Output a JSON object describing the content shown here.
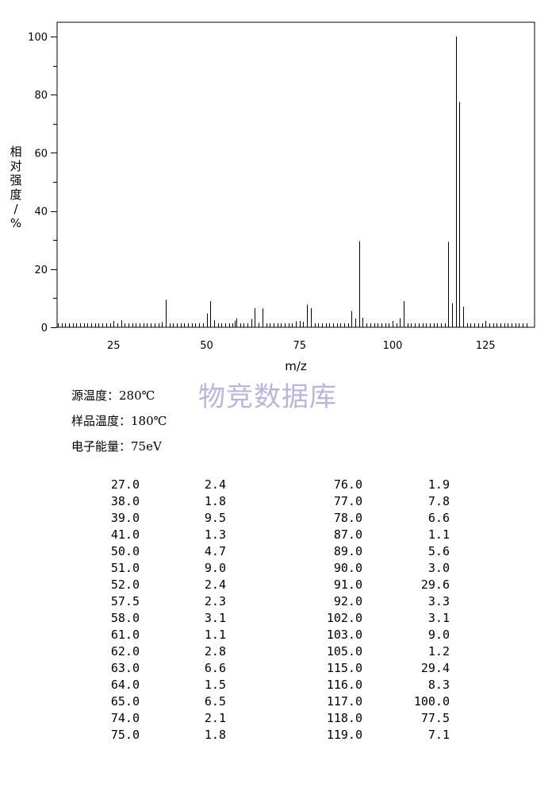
{
  "chart_data": {
    "type": "bar",
    "xlabel": "m/z",
    "ylabel": "相对强度/%",
    "xlim": [
      10,
      136
    ],
    "ylim": [
      0,
      100
    ],
    "x_ticks": [
      25,
      50,
      75,
      100,
      125
    ],
    "y_ticks": [
      0,
      20,
      40,
      60,
      80,
      100
    ],
    "grid": false,
    "peaks": [
      [
        27.0,
        2.4
      ],
      [
        38.0,
        1.8
      ],
      [
        39.0,
        9.5
      ],
      [
        41.0,
        1.3
      ],
      [
        50.0,
        4.7
      ],
      [
        51.0,
        9.0
      ],
      [
        52.0,
        2.4
      ],
      [
        57.5,
        2.3
      ],
      [
        58.0,
        3.1
      ],
      [
        61.0,
        1.1
      ],
      [
        62.0,
        2.8
      ],
      [
        63.0,
        6.6
      ],
      [
        64.0,
        1.5
      ],
      [
        65.0,
        6.5
      ],
      [
        74.0,
        2.1
      ],
      [
        75.0,
        1.8
      ],
      [
        76.0,
        1.9
      ],
      [
        77.0,
        7.8
      ],
      [
        78.0,
        6.6
      ],
      [
        87.0,
        1.1
      ],
      [
        89.0,
        5.6
      ],
      [
        90.0,
        3.0
      ],
      [
        91.0,
        29.6
      ],
      [
        92.0,
        3.3
      ],
      [
        102.0,
        3.1
      ],
      [
        103.0,
        9.0
      ],
      [
        105.0,
        1.2
      ],
      [
        115.0,
        29.4
      ],
      [
        116.0,
        8.3
      ],
      [
        117.0,
        100.0
      ],
      [
        118.0,
        77.5
      ],
      [
        119.0,
        7.1
      ]
    ]
  },
  "conditions": {
    "source_temp": "源温度：280℃",
    "sample_temp": "样品温度：180℃",
    "electron_energy": "电子能量：75eV"
  },
  "watermark": "物竞数据库",
  "table": {
    "left": [
      [
        "27.0",
        "2.4"
      ],
      [
        "38.0",
        "1.8"
      ],
      [
        "39.0",
        "9.5"
      ],
      [
        "41.0",
        "1.3"
      ],
      [
        "50.0",
        "4.7"
      ],
      [
        "51.0",
        "9.0"
      ],
      [
        "52.0",
        "2.4"
      ],
      [
        "57.5",
        "2.3"
      ],
      [
        "58.0",
        "3.1"
      ],
      [
        "61.0",
        "1.1"
      ],
      [
        "62.0",
        "2.8"
      ],
      [
        "63.0",
        "6.6"
      ],
      [
        "64.0",
        "1.5"
      ],
      [
        "65.0",
        "6.5"
      ],
      [
        "74.0",
        "2.1"
      ],
      [
        "75.0",
        "1.8"
      ]
    ],
    "right": [
      [
        "76.0",
        "1.9"
      ],
      [
        "77.0",
        "7.8"
      ],
      [
        "78.0",
        "6.6"
      ],
      [
        "87.0",
        "1.1"
      ],
      [
        "89.0",
        "5.6"
      ],
      [
        "90.0",
        "3.0"
      ],
      [
        "91.0",
        "29.6"
      ],
      [
        "92.0",
        "3.3"
      ],
      [
        "102.0",
        "3.1"
      ],
      [
        "103.0",
        "9.0"
      ],
      [
        "105.0",
        "1.2"
      ],
      [
        "115.0",
        "29.4"
      ],
      [
        "116.0",
        "8.3"
      ],
      [
        "117.0",
        "100.0"
      ],
      [
        "118.0",
        "77.5"
      ],
      [
        "119.0",
        "7.1"
      ]
    ]
  }
}
